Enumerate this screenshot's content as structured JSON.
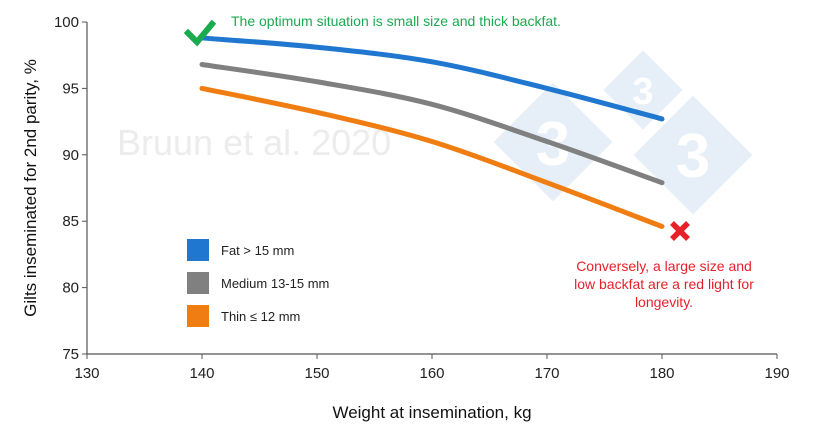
{
  "chart_data": {
    "type": "line",
    "xlabel": "Weight at insemination, kg",
    "ylabel": "Gilts inseminated for 2nd parity, %",
    "xlim": [
      130,
      190
    ],
    "ylim": [
      75,
      100
    ],
    "xticks": [
      130,
      140,
      150,
      160,
      170,
      180,
      190
    ],
    "yticks": [
      75,
      80,
      85,
      90,
      95,
      100
    ],
    "grid": false,
    "legend_placement": "bottom-left",
    "x": [
      140,
      150,
      160,
      170,
      180
    ],
    "series": [
      {
        "name": "Fat > 15 mm",
        "color": "#1f77d0",
        "values": [
          98.8,
          98.1,
          97.0,
          95.0,
          92.7
        ]
      },
      {
        "name": "Medium 13-15 mm",
        "color": "#808080",
        "values": [
          96.8,
          95.5,
          93.8,
          91.0,
          87.9
        ]
      },
      {
        "name": "Thin ≤ 12 mm",
        "color": "#f07d12",
        "values": [
          95.0,
          93.2,
          91.0,
          87.9,
          84.6
        ]
      }
    ],
    "annotations": {
      "good": {
        "text": "The optimum situation is small size and thick backfat.",
        "color": "#1aaa50",
        "icon": "check-icon"
      },
      "bad": {
        "lines": [
          "Conversely, a large size and",
          "low backfat are a red light for",
          "longevity."
        ],
        "color": "#e8202a",
        "icon": "cross-icon"
      }
    },
    "watermark": "Bruun et al. 2020",
    "logo": "333"
  }
}
